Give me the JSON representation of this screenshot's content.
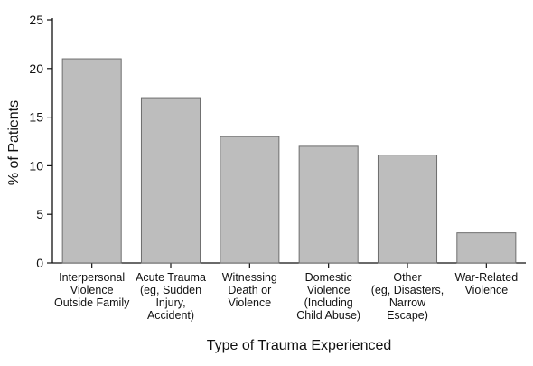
{
  "chart_data": {
    "type": "bar",
    "title": "",
    "xlabel": "Type of Trauma Experienced",
    "ylabel": "% of Patients",
    "ylim": [
      0,
      25
    ],
    "yticks": [
      0,
      5,
      10,
      15,
      20,
      25
    ],
    "grid": false,
    "categories": [
      [
        "Interpersonal",
        "Violence",
        "Outside Family"
      ],
      [
        "Acute Trauma",
        "(eg, Sudden",
        "Injury,",
        "Accident)"
      ],
      [
        "Witnessing",
        "Death or",
        "Violence"
      ],
      [
        "Domestic",
        "Violence",
        "(Including",
        "Child Abuse)"
      ],
      [
        "Other",
        "(eg, Disasters,",
        "Narrow",
        "Escape)"
      ],
      [
        "War-Related",
        "Violence"
      ]
    ],
    "values": [
      21,
      17,
      13,
      12,
      11.1,
      3.1
    ],
    "colors": {
      "bar_fill": "#bdbdbd",
      "bar_stroke": "#6e6e6e",
      "axis": "#111111"
    }
  }
}
